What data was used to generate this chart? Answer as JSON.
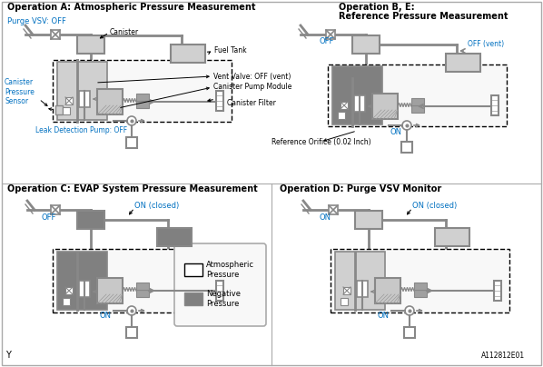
{
  "bg_color": "#ffffff",
  "neg_pressure_color": "#808080",
  "atm_pressure_color": "#e0e0e0",
  "pipe_color": "#888888",
  "border_color": "#333333",
  "title_a": "Operation A: Atmospheric Pressure Measurement",
  "title_b1": "Operation B, E:",
  "title_b2": "Reference Pressure Measurement",
  "title_c": "Operation C: EVAP System Pressure Measurement",
  "title_d": "Operation D: Purge VSV Monitor",
  "label_purge_vsv_off": "Purge VSV: OFF",
  "label_canister": "Canister",
  "label_fuel_tank": "Fuel Tank",
  "label_vent_valve": "Vent Valve: OFF (vent)",
  "label_canister_pump": "Canister Pump Module",
  "label_canister_filter": "Canister Filter",
  "label_canister_pressure": "Canister\nPressure\nSensor",
  "label_leak_pump": "Leak Detection Pump: OFF",
  "label_off": "OFF",
  "label_on": "ON",
  "label_off_vent": "OFF (vent)",
  "label_ref_orifice": "Reference Orifice (0.02 Inch)",
  "label_on_closed": "ON (closed)",
  "legend_atm": "Atmospheric\nPressure",
  "legend_neg": "Negative\nPressure",
  "watermark": "A112812E01",
  "watermark_y": "Y",
  "blue": "#0070c0",
  "black": "#000000",
  "light_gray": "#d0d0d0",
  "mid_gray": "#a0a0a0",
  "component_fill": "#c8c8c8"
}
